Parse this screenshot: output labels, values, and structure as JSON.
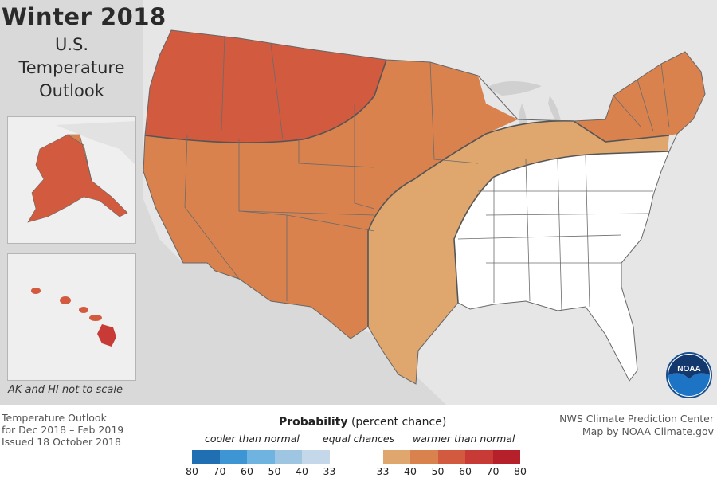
{
  "header": {
    "title": "Winter 2018",
    "subtitle_lines": [
      "U.S.",
      "Temperature",
      "Outlook"
    ]
  },
  "insets": {
    "note": "AK and HI not to scale"
  },
  "logo": {
    "text": "NOAA",
    "icon": "noaa-seagull-logo"
  },
  "footer": {
    "left_lines": [
      "Temperature Outlook",
      "for Dec 2018 – Feb 2019",
      "Issued 18 October 2018"
    ],
    "right_lines": [
      "NWS Climate Prediction Center",
      "Map by NOAA Climate.gov"
    ]
  },
  "legend": {
    "title_bold": "Probability",
    "title_rest": "(percent chance)",
    "cooler_label": "cooler than normal",
    "equal_label": "equal chances",
    "warmer_label": "warmer than normal",
    "cool_ticks": [
      "80",
      "70",
      "60",
      "50",
      "40",
      "33"
    ],
    "warm_ticks": [
      "33",
      "40",
      "50",
      "60",
      "70",
      "80"
    ],
    "cool_colors": [
      "#1f6fb2",
      "#3d95d3",
      "#6fb3e0",
      "#9ec6e2",
      "#c5d8ea"
    ],
    "equal_color": "#ffffff",
    "warm_colors": [
      "#dfa66e",
      "#d9824e",
      "#d25a3e",
      "#c73a35",
      "#b5202b"
    ]
  },
  "map_colors": {
    "land_background": "#d9d9d9",
    "ocean": "#d9d9d9",
    "prob_33_40": "#dfa66e",
    "prob_40_50": "#d9824e",
    "prob_50_60": "#d25a3e",
    "equal_chances": "#ffffff"
  }
}
